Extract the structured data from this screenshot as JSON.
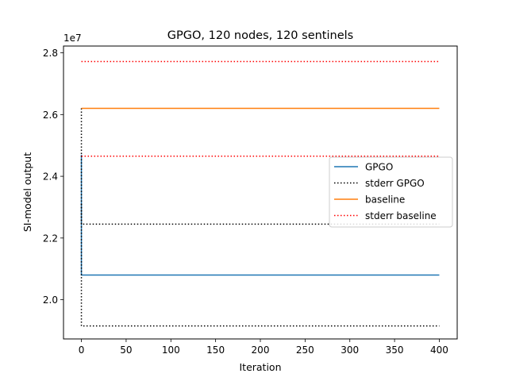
{
  "chart_data": {
    "type": "line",
    "title": "GPGO, 120 nodes, 120 sentinels",
    "xlabel": "Iteration",
    "ylabel": "SI-model output",
    "y_scale_label": "1e7",
    "xlim": [
      -20,
      420
    ],
    "ylim": [
      1.873,
      2.822
    ],
    "x_ticks": [
      0,
      50,
      100,
      150,
      200,
      250,
      300,
      350,
      400
    ],
    "y_ticks": [
      2.0,
      2.2,
      2.4,
      2.6,
      2.8
    ],
    "y_tick_labels": [
      "2.0",
      "2.2",
      "2.4",
      "2.6",
      "2.8"
    ],
    "grid": false,
    "legend_position": "center-right",
    "series": [
      {
        "name": "GPGO",
        "color": "#1f77b4",
        "style": "solid",
        "x": [
          0,
          0,
          0,
          0,
          1,
          400
        ],
        "y": [
          2.47,
          2.21,
          2.35,
          2.08,
          2.08,
          2.08
        ]
      },
      {
        "name": "stderr GPGO",
        "color": "#000000",
        "style": "dotted",
        "x": [
          0,
          0,
          1,
          400
        ],
        "y": [
          2.62,
          2.245,
          2.245,
          2.245
        ]
      },
      {
        "name": "stderr GPGO",
        "color": "#000000",
        "style": "dotted",
        "legend": false,
        "x": [
          0,
          0,
          1,
          400
        ],
        "y": [
          2.31,
          1.915,
          1.915,
          1.915
        ]
      },
      {
        "name": "baseline",
        "color": "#ff7f0e",
        "style": "solid",
        "x": [
          0,
          400
        ],
        "y": [
          2.62,
          2.62
        ]
      },
      {
        "name": "stderr baseline",
        "color": "#ff0000",
        "style": "dotted",
        "x": [
          0,
          400
        ],
        "y": [
          2.772,
          2.772
        ]
      },
      {
        "name": "stderr baseline",
        "color": "#ff0000",
        "style": "dotted",
        "legend": false,
        "x": [
          0,
          400
        ],
        "y": [
          2.465,
          2.465
        ]
      }
    ]
  }
}
